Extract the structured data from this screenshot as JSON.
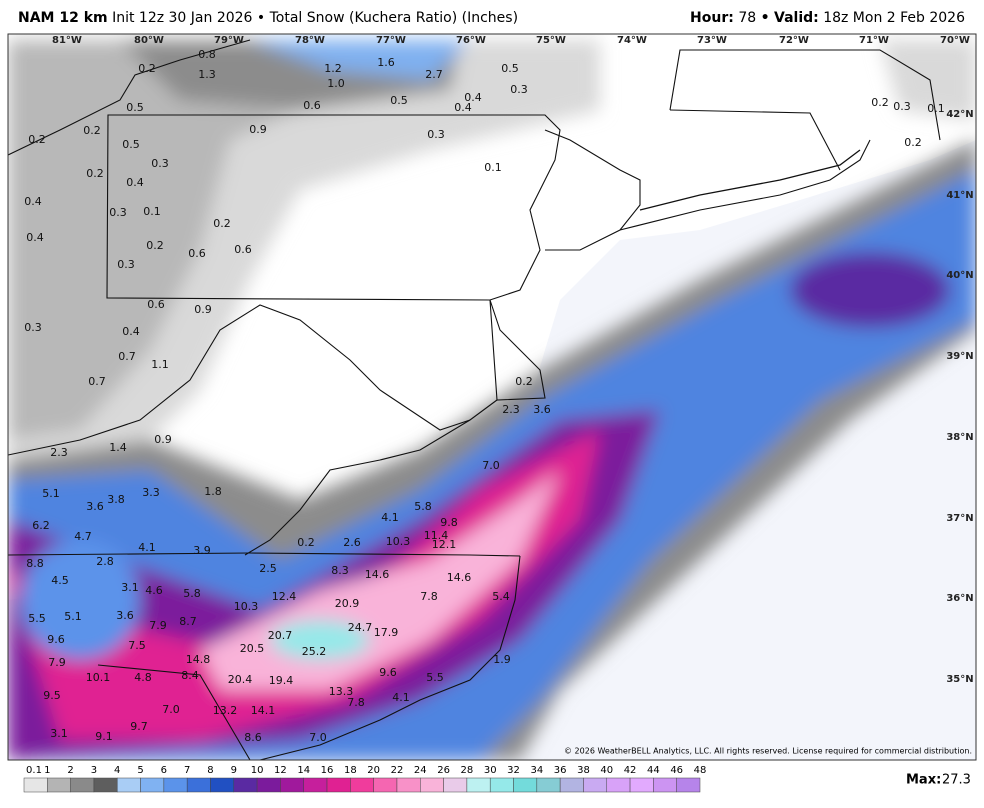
{
  "header": {
    "model": "NAM 12 km",
    "init": "Init 12z 30 Jan 2026",
    "separator": "•",
    "product": "Total Snow (Kuchera Ratio) (Inches)",
    "hour_label": "Hour:",
    "hour": 78,
    "valid_separator": "•",
    "valid_label": "Valid:",
    "valid": "18z Mon 2 Feb 2026"
  },
  "longitudes": [
    "81°W",
    "80°W",
    "79°W",
    "78°W",
    "77°W",
    "76°W",
    "75°W",
    "74°W",
    "73°W",
    "72°W",
    "71°W",
    "70°W"
  ],
  "latitudes": [
    "42°N",
    "41°N",
    "40°N",
    "39°N",
    "38°N",
    "37°N",
    "36°N",
    "35°N"
  ],
  "snow_labels": [
    "0.8",
    "0.2",
    "1.3",
    "1.2",
    "1.6",
    "2.7",
    "0.5",
    "1.0",
    "0.3",
    "0.5",
    "0.6",
    "0.5",
    "0.4",
    "0.4",
    "0.2",
    "0.9",
    "0.3",
    "0.2",
    "0.5",
    "0.3",
    "0.1",
    "0.2",
    "0.4",
    "0.4",
    "0.3",
    "0.1",
    "0.2",
    "0.4",
    "0.2",
    "0.6",
    "0.6",
    "0.3",
    "0.6",
    "0.9",
    "0.3",
    "0.4",
    "0.7",
    "1.1",
    "0.7",
    "0.2",
    "2.3",
    "3.6",
    "0.9",
    "1.4",
    "2.3",
    "7.0",
    "1.8",
    "5.1",
    "3.6",
    "3.8",
    "3.3",
    "5.8",
    "4.1",
    "9.8",
    "6.2",
    "4.7",
    "11.4",
    "0.2",
    "2.6",
    "10.3",
    "12.1",
    "4.1",
    "3.9",
    "8.8",
    "2.8",
    "2.5",
    "8.3",
    "14.6",
    "14.6",
    "4.5",
    "3.1",
    "4.6",
    "5.8",
    "7.8",
    "5.4",
    "10.3",
    "12.4",
    "20.9",
    "5.5",
    "5.1",
    "3.6",
    "7.9",
    "8.7",
    "24.7",
    "17.9",
    "9.6",
    "20.7",
    "7.5",
    "20.5",
    "25.2",
    "7.9",
    "14.8",
    "1.9",
    "9.6",
    "10.1",
    "4.8",
    "8.4",
    "20.4",
    "19.4",
    "5.5",
    "9.5",
    "13.3",
    "4.1",
    "7.8",
    "7.0",
    "13.2",
    "14.1",
    "9.7",
    "3.1",
    "9.1",
    "8.6",
    "7.0",
    "0.2",
    "0.3",
    "0.1",
    "0.2"
  ],
  "copyright": "© 2026 WeatherBELL Analytics, LLC. All rights reserved. License required for commercial distribution.",
  "colorbar": {
    "ticks": [
      0.1,
      1,
      2,
      3,
      4,
      5,
      6,
      7,
      8,
      9,
      10,
      12,
      14,
      16,
      18,
      20,
      22,
      24,
      26,
      28,
      30,
      32,
      34,
      36,
      38,
      40,
      42,
      44,
      46,
      48
    ],
    "colors": [
      "#e6e6e6",
      "#b4b4b4",
      "#8a8a8a",
      "#5e5e5e",
      "#a9cdf5",
      "#80b2f2",
      "#5b93ea",
      "#3b70da",
      "#2150c2",
      "#5a2aa2",
      "#7b1b9c",
      "#a0199c",
      "#c61f9c",
      "#e02192",
      "#f03c9c",
      "#f566b1",
      "#f891c8",
      "#f9b3d9",
      "#e9cbe9",
      "#bdf1f1",
      "#95e9e9",
      "#73dbdb",
      "#86ccd4",
      "#b2b4e2",
      "#c9aaf2",
      "#d8a2f8",
      "#e2aafe",
      "#cc94f2",
      "#b684ea"
    ]
  },
  "max_label": "Max:",
  "max": 27.3
}
